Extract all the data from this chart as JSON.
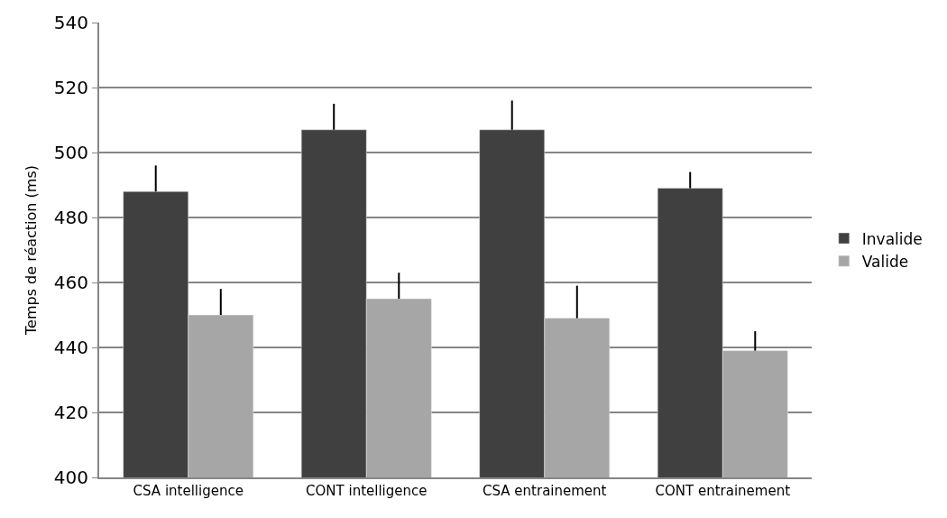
{
  "chart_data": {
    "type": "bar",
    "ylabel": "Temps de réaction (ms)",
    "categories": [
      "CSA intelligence",
      "CONT intelligence",
      "CSA entrainement",
      "CONT entrainement"
    ],
    "series": [
      {
        "name": "Invalide",
        "color": "#404040",
        "values": [
          488,
          507,
          507,
          489
        ],
        "errors": [
          [
            488,
            496
          ],
          [
            507,
            515
          ],
          [
            507,
            516
          ],
          [
            489,
            494
          ]
        ]
      },
      {
        "name": "Valide",
        "color": "#a6a6a6",
        "values": [
          450,
          455,
          449,
          439
        ],
        "errors": [
          [
            450,
            458
          ],
          [
            455,
            463
          ],
          [
            449,
            459
          ],
          [
            439,
            445
          ]
        ]
      }
    ],
    "ylim": [
      400,
      540
    ],
    "yticks": [
      400,
      420,
      440,
      460,
      480,
      500,
      520,
      540
    ],
    "grid": "y",
    "legend": "right"
  }
}
